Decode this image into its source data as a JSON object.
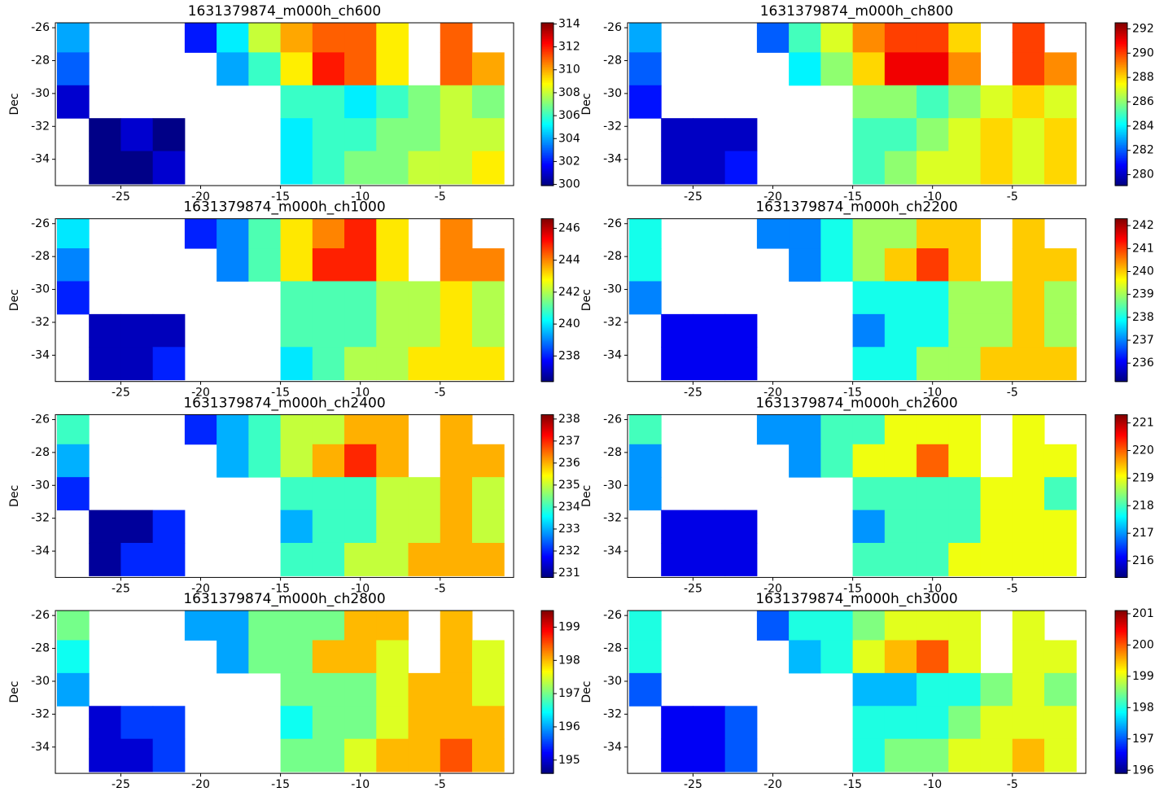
{
  "chart_data": [
    {
      "type": "heatmap",
      "title": "1631379874_m000h_ch600",
      "ylabel": "Dec",
      "colormap": "jet",
      "x_edges": [
        -29,
        -27,
        -25,
        -23,
        -21,
        -19,
        -17,
        -15,
        -13,
        -11,
        -9,
        -7,
        -5,
        -3,
        -1
      ],
      "y_edges": [
        -25.7,
        -27.5,
        -29.5,
        -31.5,
        -33.5,
        -35.5
      ],
      "xlim": [
        -29.1,
        -0.4
      ],
      "ylim": [
        -35.6,
        -25.7
      ],
      "y_inverted": true,
      "xticks": [
        -25,
        -20,
        -15,
        -10,
        -5
      ],
      "yticks": [
        -26,
        -28,
        -30,
        -32,
        -34
      ],
      "clim": [
        299.9,
        314.1
      ],
      "cticks": [
        300,
        302,
        304,
        306,
        308,
        310,
        312,
        314
      ],
      "z": [
        [
          304,
          null,
          null,
          null,
          302,
          305,
          308,
          310,
          311,
          311,
          309,
          null,
          311,
          null
        ],
        [
          303,
          null,
          null,
          null,
          null,
          304,
          306,
          309,
          312,
          311,
          309,
          null,
          311,
          310
        ],
        [
          301,
          null,
          null,
          null,
          null,
          null,
          null,
          306,
          306,
          305,
          306,
          307,
          308,
          307
        ],
        [
          null,
          300,
          301,
          300,
          null,
          null,
          null,
          305,
          306,
          306,
          307,
          307,
          308,
          308
        ],
        [
          null,
          300,
          300,
          301,
          null,
          null,
          null,
          305,
          306,
          307,
          307,
          308,
          308,
          309
        ]
      ]
    },
    {
      "type": "heatmap",
      "title": "1631379874_m000h_ch800",
      "ylabel": "Dec",
      "colormap": "jet",
      "x_edges": [
        -29,
        -27,
        -25,
        -23,
        -21,
        -19,
        -17,
        -15,
        -13,
        -11,
        -9,
        -7,
        -5,
        -3,
        -1
      ],
      "y_edges": [
        -25.7,
        -27.5,
        -29.5,
        -31.5,
        -33.5,
        -35.5
      ],
      "xlim": [
        -29.1,
        -0.4
      ],
      "ylim": [
        -35.6,
        -25.7
      ],
      "y_inverted": true,
      "xticks": [
        -25,
        -20,
        -15,
        -10,
        -5
      ],
      "yticks": [
        -26,
        -28,
        -30,
        -32,
        -34
      ],
      "clim": [
        279.1,
        292.5
      ],
      "cticks": [
        280,
        282,
        284,
        286,
        288,
        290,
        292
      ],
      "z": [
        [
          283,
          null,
          null,
          null,
          282,
          285,
          287,
          289,
          290,
          290,
          288,
          null,
          290,
          null
        ],
        [
          282,
          null,
          null,
          null,
          null,
          284,
          286,
          288,
          291,
          291,
          289,
          null,
          290,
          289
        ],
        [
          281,
          null,
          null,
          null,
          null,
          null,
          null,
          286,
          286,
          285,
          286,
          287,
          288,
          287
        ],
        [
          null,
          280,
          280,
          280,
          null,
          null,
          null,
          285,
          285,
          286,
          287,
          288,
          287,
          288
        ],
        [
          null,
          280,
          280,
          281,
          null,
          null,
          null,
          285,
          286,
          287,
          287,
          288,
          287,
          288
        ]
      ]
    },
    {
      "type": "heatmap",
      "title": "1631379874_m000h_ch1000",
      "ylabel": "Dec",
      "colormap": "jet",
      "x_edges": [
        -29,
        -27,
        -25,
        -23,
        -21,
        -19,
        -17,
        -15,
        -13,
        -11,
        -9,
        -7,
        -5,
        -3,
        -1
      ],
      "y_edges": [
        -25.7,
        -27.5,
        -29.5,
        -31.5,
        -33.5,
        -35.5
      ],
      "xlim": [
        -29.1,
        -0.4
      ],
      "ylim": [
        -35.6,
        -25.7
      ],
      "y_inverted": true,
      "xticks": [
        -25,
        -20,
        -15,
        -10,
        -5
      ],
      "yticks": [
        -26,
        -28,
        -30,
        -32,
        -34
      ],
      "clim": [
        236.4,
        246.6
      ],
      "cticks": [
        238,
        240,
        242,
        244,
        246
      ],
      "z": [
        [
          240,
          null,
          null,
          null,
          238,
          239,
          241,
          243,
          244,
          245,
          243,
          null,
          244,
          null
        ],
        [
          239,
          null,
          null,
          null,
          null,
          239,
          241,
          243,
          245,
          245,
          243,
          null,
          244,
          244
        ],
        [
          238,
          null,
          null,
          null,
          null,
          null,
          null,
          241,
          241,
          241,
          242,
          242,
          243,
          242
        ],
        [
          null,
          237,
          237,
          237,
          null,
          null,
          null,
          241,
          241,
          241,
          242,
          242,
          243,
          242
        ],
        [
          null,
          237,
          237,
          238,
          null,
          null,
          null,
          240,
          241,
          242,
          242,
          243,
          243,
          243
        ]
      ]
    },
    {
      "type": "heatmap",
      "title": "1631379874_m000h_ch2200",
      "ylabel": "Dec",
      "colormap": "jet",
      "x_edges": [
        -29,
        -27,
        -25,
        -23,
        -21,
        -19,
        -17,
        -15,
        -13,
        -11,
        -9,
        -7,
        -5,
        -3,
        -1
      ],
      "y_edges": [
        -25.7,
        -27.5,
        -29.5,
        -31.5,
        -33.5,
        -35.5
      ],
      "xlim": [
        -29.1,
        -0.4
      ],
      "ylim": [
        -35.6,
        -25.7
      ],
      "y_inverted": true,
      "xticks": [
        -25,
        -20,
        -15,
        -10,
        -5
      ],
      "yticks": [
        -26,
        -28,
        -30,
        -32,
        -34
      ],
      "clim": [
        235.2,
        242.3
      ],
      "cticks": [
        236,
        237,
        238,
        239,
        240,
        241,
        242
      ],
      "z": [
        [
          238,
          null,
          null,
          null,
          237,
          237,
          238,
          239,
          239,
          240,
          240,
          null,
          240,
          null
        ],
        [
          238,
          null,
          null,
          null,
          null,
          237,
          238,
          239,
          240,
          241,
          240,
          null,
          240,
          240
        ],
        [
          237,
          null,
          null,
          null,
          null,
          null,
          null,
          238,
          238,
          238,
          239,
          239,
          240,
          239
        ],
        [
          null,
          236,
          236,
          236,
          null,
          null,
          null,
          237,
          238,
          238,
          239,
          239,
          240,
          239
        ],
        [
          null,
          236,
          236,
          236,
          null,
          null,
          null,
          238,
          238,
          239,
          239,
          240,
          240,
          240
        ]
      ]
    },
    {
      "type": "heatmap",
      "title": "1631379874_m000h_ch2400",
      "ylabel": "Dec",
      "colormap": "jet",
      "x_edges": [
        -29,
        -27,
        -25,
        -23,
        -21,
        -19,
        -17,
        -15,
        -13,
        -11,
        -9,
        -7,
        -5,
        -3,
        -1
      ],
      "y_edges": [
        -25.7,
        -27.5,
        -29.5,
        -31.5,
        -33.5,
        -35.5
      ],
      "xlim": [
        -29.1,
        -0.4
      ],
      "ylim": [
        -35.6,
        -25.7
      ],
      "y_inverted": true,
      "xticks": [
        -25,
        -20,
        -15,
        -10,
        -5
      ],
      "yticks": [
        -26,
        -28,
        -30,
        -32,
        -34
      ],
      "clim": [
        230.8,
        238.2
      ],
      "cticks": [
        231,
        232,
        233,
        234,
        235,
        236,
        237,
        238
      ],
      "z": [
        [
          234,
          null,
          null,
          null,
          232,
          233,
          234,
          235,
          235,
          236,
          236,
          null,
          236,
          null
        ],
        [
          233,
          null,
          null,
          null,
          null,
          233,
          234,
          235,
          236,
          237,
          236,
          null,
          236,
          236
        ],
        [
          232,
          null,
          null,
          null,
          null,
          null,
          null,
          234,
          234,
          234,
          235,
          235,
          236,
          235
        ],
        [
          null,
          231,
          231,
          232,
          null,
          null,
          null,
          233,
          234,
          234,
          235,
          235,
          236,
          235
        ],
        [
          null,
          231,
          232,
          232,
          null,
          null,
          null,
          234,
          234,
          235,
          235,
          236,
          236,
          236
        ]
      ]
    },
    {
      "type": "heatmap",
      "title": "1631379874_m000h_ch2600",
      "ylabel": "Dec",
      "colormap": "jet",
      "x_edges": [
        -29,
        -27,
        -25,
        -23,
        -21,
        -19,
        -17,
        -15,
        -13,
        -11,
        -9,
        -7,
        -5,
        -3,
        -1
      ],
      "y_edges": [
        -25.7,
        -27.5,
        -29.5,
        -31.5,
        -33.5,
        -35.5
      ],
      "xlim": [
        -29.1,
        -0.4
      ],
      "ylim": [
        -35.6,
        -25.7
      ],
      "y_inverted": true,
      "xticks": [
        -25,
        -20,
        -15,
        -10,
        -5
      ],
      "yticks": [
        -26,
        -28,
        -30,
        -32,
        -34
      ],
      "clim": [
        215.4,
        221.3
      ],
      "cticks": [
        216,
        217,
        218,
        219,
        220,
        221
      ],
      "z": [
        [
          218,
          null,
          null,
          null,
          217,
          217,
          218,
          218,
          219,
          219,
          219,
          null,
          219,
          null
        ],
        [
          217,
          null,
          null,
          null,
          null,
          217,
          218,
          219,
          219,
          220,
          219,
          null,
          219,
          219
        ],
        [
          217,
          null,
          null,
          null,
          null,
          null,
          null,
          218,
          218,
          218,
          218,
          219,
          219,
          218
        ],
        [
          null,
          216,
          216,
          216,
          null,
          null,
          null,
          217,
          218,
          218,
          218,
          219,
          219,
          219
        ],
        [
          null,
          216,
          216,
          216,
          null,
          null,
          null,
          218,
          218,
          218,
          219,
          219,
          219,
          219
        ]
      ]
    },
    {
      "type": "heatmap",
      "title": "1631379874_m000h_ch2800",
      "ylabel": "Dec",
      "colormap": "jet",
      "x_edges": [
        -29,
        -27,
        -25,
        -23,
        -21,
        -19,
        -17,
        -15,
        -13,
        -11,
        -9,
        -7,
        -5,
        -3,
        -1
      ],
      "y_edges": [
        -25.7,
        -27.5,
        -29.5,
        -31.5,
        -33.5,
        -35.5
      ],
      "xlim": [
        -29.1,
        -0.4
      ],
      "ylim": [
        -35.6,
        -25.7
      ],
      "y_inverted": true,
      "xticks": [
        -25,
        -20,
        -15,
        -10,
        -5
      ],
      "yticks": [
        -26,
        -28,
        -30,
        -32,
        -34
      ],
      "clim": [
        194.6,
        199.5
      ],
      "cticks": [
        195,
        196,
        197,
        198,
        199
      ],
      "z": [
        [
          197,
          null,
          null,
          null,
          196,
          196,
          197,
          197,
          197,
          198,
          198,
          null,
          198,
          null
        ],
        [
          196.5,
          null,
          null,
          null,
          null,
          196,
          197,
          197,
          198,
          198,
          197.5,
          null,
          198,
          197.5
        ],
        [
          196,
          null,
          null,
          null,
          null,
          null,
          null,
          197,
          197,
          197,
          197.5,
          198,
          198,
          197.5
        ],
        [
          null,
          195,
          195.5,
          195.5,
          null,
          null,
          null,
          196.5,
          197,
          197,
          197.5,
          198,
          198,
          198
        ],
        [
          null,
          195,
          195,
          195.5,
          null,
          null,
          null,
          197,
          197,
          197.5,
          198,
          198,
          198.5,
          198
        ]
      ]
    },
    {
      "type": "heatmap",
      "title": "1631379874_m000h_ch3000",
      "ylabel": "Dec",
      "colormap": "jet",
      "x_edges": [
        -29,
        -27,
        -25,
        -23,
        -21,
        -19,
        -17,
        -15,
        -13,
        -11,
        -9,
        -7,
        -5,
        -3,
        -1
      ],
      "y_edges": [
        -25.7,
        -27.5,
        -29.5,
        -31.5,
        -33.5,
        -35.5
      ],
      "xlim": [
        -29.1,
        -0.4
      ],
      "ylim": [
        -35.6,
        -25.7
      ],
      "y_inverted": true,
      "xticks": [
        -25,
        -20,
        -15,
        -10,
        -5
      ],
      "yticks": [
        -26,
        -28,
        -30,
        -32,
        -34
      ],
      "clim": [
        195.9,
        201.1
      ],
      "cticks": [
        196,
        197,
        198,
        199,
        200,
        201
      ],
      "z": [
        [
          198,
          null,
          null,
          null,
          197,
          198,
          198,
          198.5,
          199,
          199,
          199,
          null,
          199,
          null
        ],
        [
          198,
          null,
          null,
          null,
          null,
          197.5,
          198,
          199,
          199.5,
          200,
          199,
          null,
          199,
          199
        ],
        [
          197,
          null,
          null,
          null,
          null,
          null,
          null,
          197.5,
          197.5,
          198,
          198,
          198.5,
          199,
          198.5
        ],
        [
          null,
          196.5,
          196.5,
          197,
          null,
          null,
          null,
          198,
          198,
          198,
          198.5,
          199,
          199,
          199
        ],
        [
          null,
          196.5,
          196.5,
          197,
          null,
          null,
          null,
          198,
          198.5,
          198.5,
          199,
          199,
          199.5,
          199
        ]
      ]
    }
  ]
}
